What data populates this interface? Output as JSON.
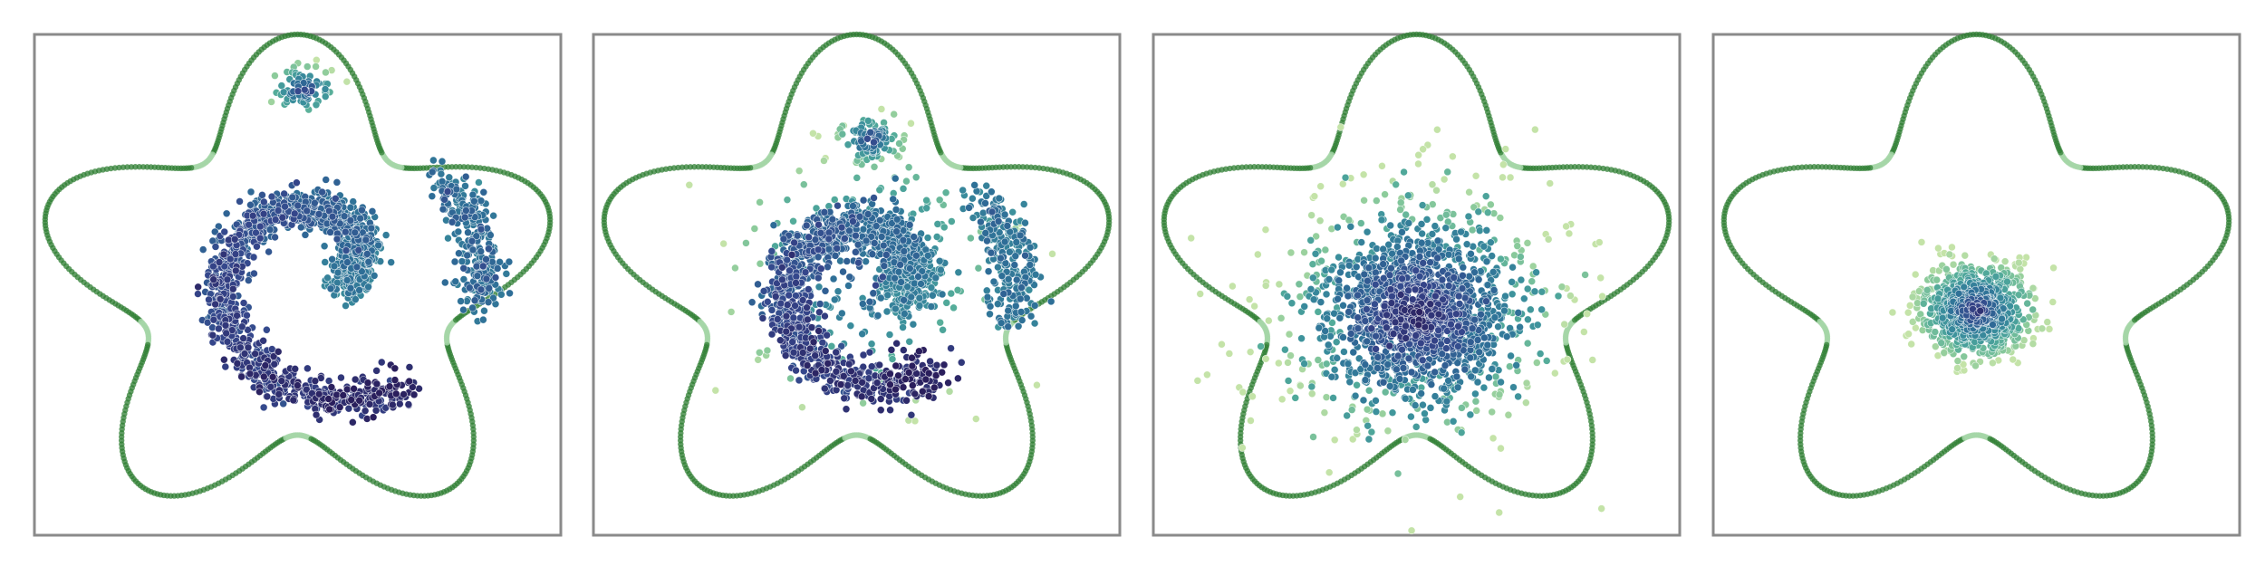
{
  "figure": {
    "panel_count": 4,
    "boundary_color": "#2e7d32",
    "boundary_highlight_color": "#a5d6a7",
    "frame_color": "#8a8a8a",
    "colormap": [
      "#2a1e5c",
      "#35478c",
      "#2e6e97",
      "#3a8e9c",
      "#52ab9a",
      "#8ccb9b",
      "#c4e3a8"
    ]
  },
  "chart_data": [
    {
      "type": "scatter",
      "xlim": [
        -1,
        1
      ],
      "ylim": [
        -1,
        1
      ],
      "grid": false,
      "boundary": {
        "shape": "five-lobed star",
        "lobes": 5,
        "base_radius": 0.8,
        "lobe_amplitude": 0.2
      },
      "clusters": [
        {
          "shape": "spiral-arc",
          "center": [
            0.1,
            0.05
          ],
          "r_start": 0.08,
          "r_end": 0.55,
          "theta_start": 5.8,
          "theta_end": 11.6,
          "n": 1500,
          "spread": 0.04,
          "tone_start": 0.45,
          "tone_end": 0.05
        },
        {
          "shape": "arc",
          "center": [
            0.15,
            0.05
          ],
          "radius": 0.55,
          "theta_start": -0.25,
          "theta_end": 0.75,
          "n": 280,
          "spread": 0.04,
          "tone": 0.35
        },
        {
          "shape": "blob",
          "center": [
            0.02,
            0.78
          ],
          "sx": 0.06,
          "sy": 0.04,
          "n": 70,
          "tone": 0.5
        }
      ]
    },
    {
      "type": "scatter",
      "xlim": [
        -1,
        1
      ],
      "ylim": [
        -1,
        1
      ],
      "grid": false,
      "boundary": {
        "shape": "five-lobed star",
        "lobes": 5,
        "base_radius": 0.8,
        "lobe_amplitude": 0.2
      },
      "clusters": [
        {
          "shape": "spiral-arc",
          "center": [
            0.05,
            0.0
          ],
          "r_start": 0.12,
          "r_end": 0.42,
          "theta_start": 5.8,
          "theta_end": 11.6,
          "n": 1400,
          "spread": 0.05,
          "tone_start": 0.5,
          "tone_end": 0.05
        },
        {
          "shape": "arc",
          "center": [
            0.1,
            0.0
          ],
          "radius": 0.5,
          "theta_start": -0.3,
          "theta_end": 0.7,
          "n": 250,
          "spread": 0.05,
          "tone": 0.4
        },
        {
          "shape": "blob",
          "center": [
            0.05,
            0.58
          ],
          "sx": 0.06,
          "sy": 0.05,
          "n": 90,
          "tone": 0.55
        },
        {
          "shape": "blob",
          "center": [
            0.05,
            0.05
          ],
          "sx": 0.25,
          "sy": 0.25,
          "n": 220,
          "tone": 0.6
        }
      ]
    },
    {
      "type": "scatter",
      "xlim": [
        -1,
        1
      ],
      "ylim": [
        -1,
        1
      ],
      "grid": false,
      "boundary": {
        "shape": "five-lobed star",
        "lobes": 5,
        "base_radius": 0.8,
        "lobe_amplitude": 0.2
      },
      "clusters": [
        {
          "shape": "blob",
          "center": [
            0.0,
            -0.12
          ],
          "sx": 0.18,
          "sy": 0.17,
          "n": 1300,
          "tone": 0.3
        },
        {
          "shape": "blob",
          "center": [
            0.0,
            -0.1
          ],
          "sx": 0.3,
          "sy": 0.28,
          "n": 400,
          "tone": 0.7
        }
      ]
    },
    {
      "type": "scatter",
      "xlim": [
        -1,
        1
      ],
      "ylim": [
        -1,
        1
      ],
      "grid": false,
      "boundary": {
        "shape": "five-lobed star",
        "lobes": 5,
        "base_radius": 0.8,
        "lobe_amplitude": 0.2
      },
      "clusters": [
        {
          "shape": "blob",
          "center": [
            0.0,
            -0.1
          ],
          "sx": 0.1,
          "sy": 0.09,
          "n": 900,
          "tone": 0.55
        }
      ]
    }
  ]
}
